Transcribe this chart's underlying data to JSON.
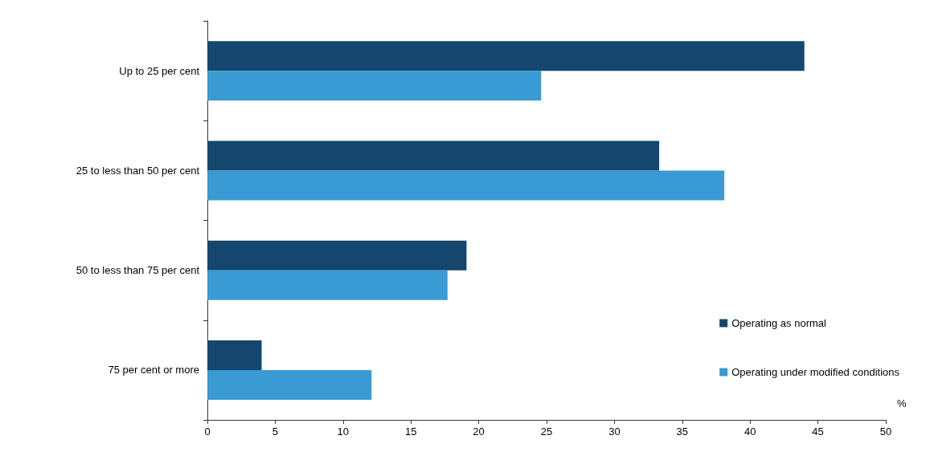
{
  "chart_data": {
    "type": "bar",
    "orientation": "horizontal",
    "xlabel": "%",
    "categories": [
      "Up to 25 per cent",
      "25 to less than 50 per cent",
      "50 to less than 75 per cent",
      "75 per cent or more"
    ],
    "series": [
      {
        "name": "Operating as normal",
        "color": "#14466e",
        "values": [
          44.0,
          33.3,
          19.1,
          4.0
        ]
      },
      {
        "name": "Operating under modified conditions",
        "color": "#3a9ad3",
        "values": [
          24.6,
          38.1,
          17.7,
          12.1
        ]
      }
    ],
    "xlim": [
      0,
      50
    ],
    "xticks": [
      0,
      5,
      10,
      15,
      20,
      25,
      30,
      35,
      40,
      45,
      50
    ],
    "grid": false,
    "legend": "bottom right"
  }
}
